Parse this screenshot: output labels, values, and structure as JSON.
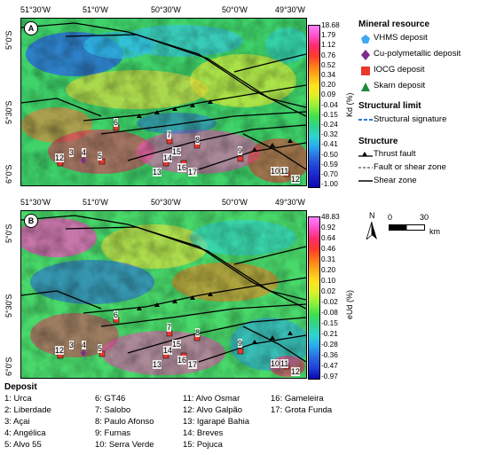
{
  "top_axis_labels": [
    "51°30'W",
    "51°0'W",
    "50°30'W",
    "50°0'W",
    "49°30'W"
  ],
  "left_axis_labels": [
    "5°0'S",
    "5°30'S",
    "6°0'S"
  ],
  "panel_a": {
    "label": "A",
    "colorbar_title": "Kd (%)",
    "ticks": [
      "18.68",
      "1.79",
      "1.12",
      "0.76",
      "0.52",
      "0.34",
      "0.20",
      "0.09",
      "-0.04",
      "-0.15",
      "-0.24",
      "-0.32",
      "-0.41",
      "-0.50",
      "-0.59",
      "-0.70",
      "-1.00"
    ]
  },
  "panel_b": {
    "label": "B",
    "colorbar_title": "eUd (%)",
    "ticks": [
      "48.83",
      "0.92",
      "0.64",
      "0.46",
      "0.31",
      "0.20",
      "0.10",
      "0.02",
      "-0.02",
      "-0.08",
      "-0.15",
      "-0.21",
      "-0.28",
      "-0.36",
      "-0.47",
      "-0.97"
    ]
  },
  "legend": {
    "mineral_title": "Mineral resource",
    "minerals": [
      {
        "label": "VHMS deposit",
        "icon": "pentagon-icon",
        "color": "#3fa9f5"
      },
      {
        "label": "Cu-polymetallic deposit",
        "icon": "diamond-icon",
        "color": "#7b2d8e"
      },
      {
        "label": "IOCG deposit",
        "icon": "square-icon",
        "color": "#e8392c"
      },
      {
        "label": "Skarn deposit",
        "icon": "triangle-icon",
        "color": "#1e8b3a"
      }
    ],
    "structural_title": "Structural limit",
    "structural": [
      {
        "label": "Structural signature",
        "icon": "dashed-blue-line-icon",
        "color": "#2a7bd4"
      }
    ],
    "structure_title": "Structure",
    "structures": [
      {
        "label": "Thrust fault",
        "icon": "thrust-fault-icon"
      },
      {
        "label": "Fault or shear zone",
        "icon": "dashed-line-icon"
      },
      {
        "label": "Shear zone",
        "icon": "solid-line-icon"
      }
    ]
  },
  "north": "N",
  "scale": {
    "zero": "0",
    "value": "30",
    "unit": "km"
  },
  "deposit_title": "Deposit",
  "deposits": [
    "1: Urca",
    "2: Liberdade",
    "3: Açai",
    "4: Angélica",
    "5: Alvo 55",
    "6: GT46",
    "7: Salobo",
    "8: Paulo Afonso",
    "9: Furnas",
    "10: Serra Verde",
    "11: Alvo Osmar",
    "12: Alvo Galpão",
    "13: Igarapé Bahia",
    "14: Breves",
    "15: Pojuca",
    "16: Gameleira",
    "17: Grota Funda"
  ],
  "map_points": [
    "12",
    "3",
    "4",
    "5",
    "6",
    "7",
    "8",
    "9",
    "13",
    "14",
    "15",
    "16",
    "17",
    "10",
    "11",
    "12"
  ]
}
